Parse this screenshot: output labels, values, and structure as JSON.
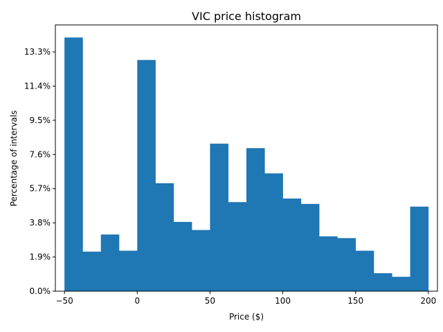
{
  "chart_data": {
    "type": "bar",
    "title": "VIC price histogram",
    "xlabel": "Price ($)",
    "ylabel": "Percentage of intervals",
    "xlim": [
      -56.25,
      206.25
    ],
    "ylim": [
      0,
      14.8
    ],
    "bin_edges": [
      -50,
      -37.5,
      -25,
      -12.5,
      0,
      12.5,
      25,
      37.5,
      50,
      62.5,
      75,
      87.5,
      100,
      112.5,
      125,
      137.5,
      150,
      162.5,
      175,
      187.5,
      200
    ],
    "values": [
      14.1,
      2.2,
      3.15,
      2.25,
      12.85,
      6.0,
      3.85,
      3.4,
      8.2,
      4.95,
      7.95,
      6.55,
      5.15,
      4.85,
      3.05,
      2.95,
      2.25,
      1.0,
      0.8,
      4.7
    ],
    "bar_color": "#1f77b4",
    "xticks": [
      -50,
      0,
      50,
      100,
      150,
      200
    ],
    "xtick_labels": [
      "−50",
      "0",
      "50",
      "100",
      "150",
      "200"
    ],
    "yticks": [
      0,
      1.9,
      3.8,
      5.7,
      7.6,
      9.5,
      11.4,
      13.3
    ],
    "ytick_labels": [
      "0.0%",
      "1.9%",
      "3.8%",
      "5.7%",
      "7.6%",
      "9.5%",
      "11.4%",
      "13.3%"
    ],
    "grid": false,
    "legend": "none"
  }
}
